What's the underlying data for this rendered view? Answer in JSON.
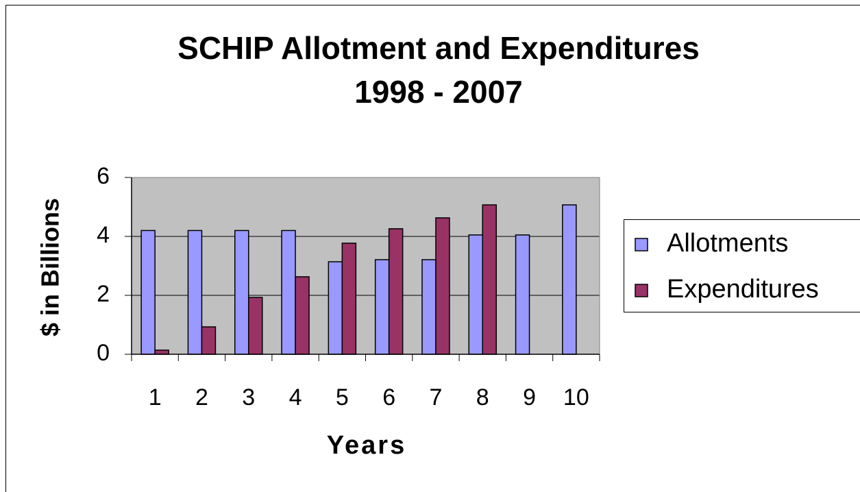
{
  "chart_data": {
    "type": "bar",
    "title": "SCHIP Allotment and Expenditures",
    "subtitle": "1998 - 2007",
    "x_label": "Years",
    "y_label": "$ in Billions",
    "categories": [
      1,
      2,
      3,
      4,
      5,
      6,
      7,
      8,
      9,
      10
    ],
    "series": [
      {
        "name": "Allotments",
        "color": "#9999ff",
        "values": [
          4.2,
          4.2,
          4.2,
          4.2,
          3.14,
          3.21,
          3.21,
          4.05,
          4.05,
          5.07
        ]
      },
      {
        "name": "Expenditures",
        "color": "#993366",
        "values": [
          0.14,
          0.93,
          1.93,
          2.63,
          3.77,
          4.26,
          4.63,
          5.07,
          null,
          null
        ]
      }
    ],
    "ylim": [
      0,
      6
    ],
    "yticks": [
      0,
      2,
      4,
      6
    ],
    "grid": true,
    "legend": "right"
  }
}
